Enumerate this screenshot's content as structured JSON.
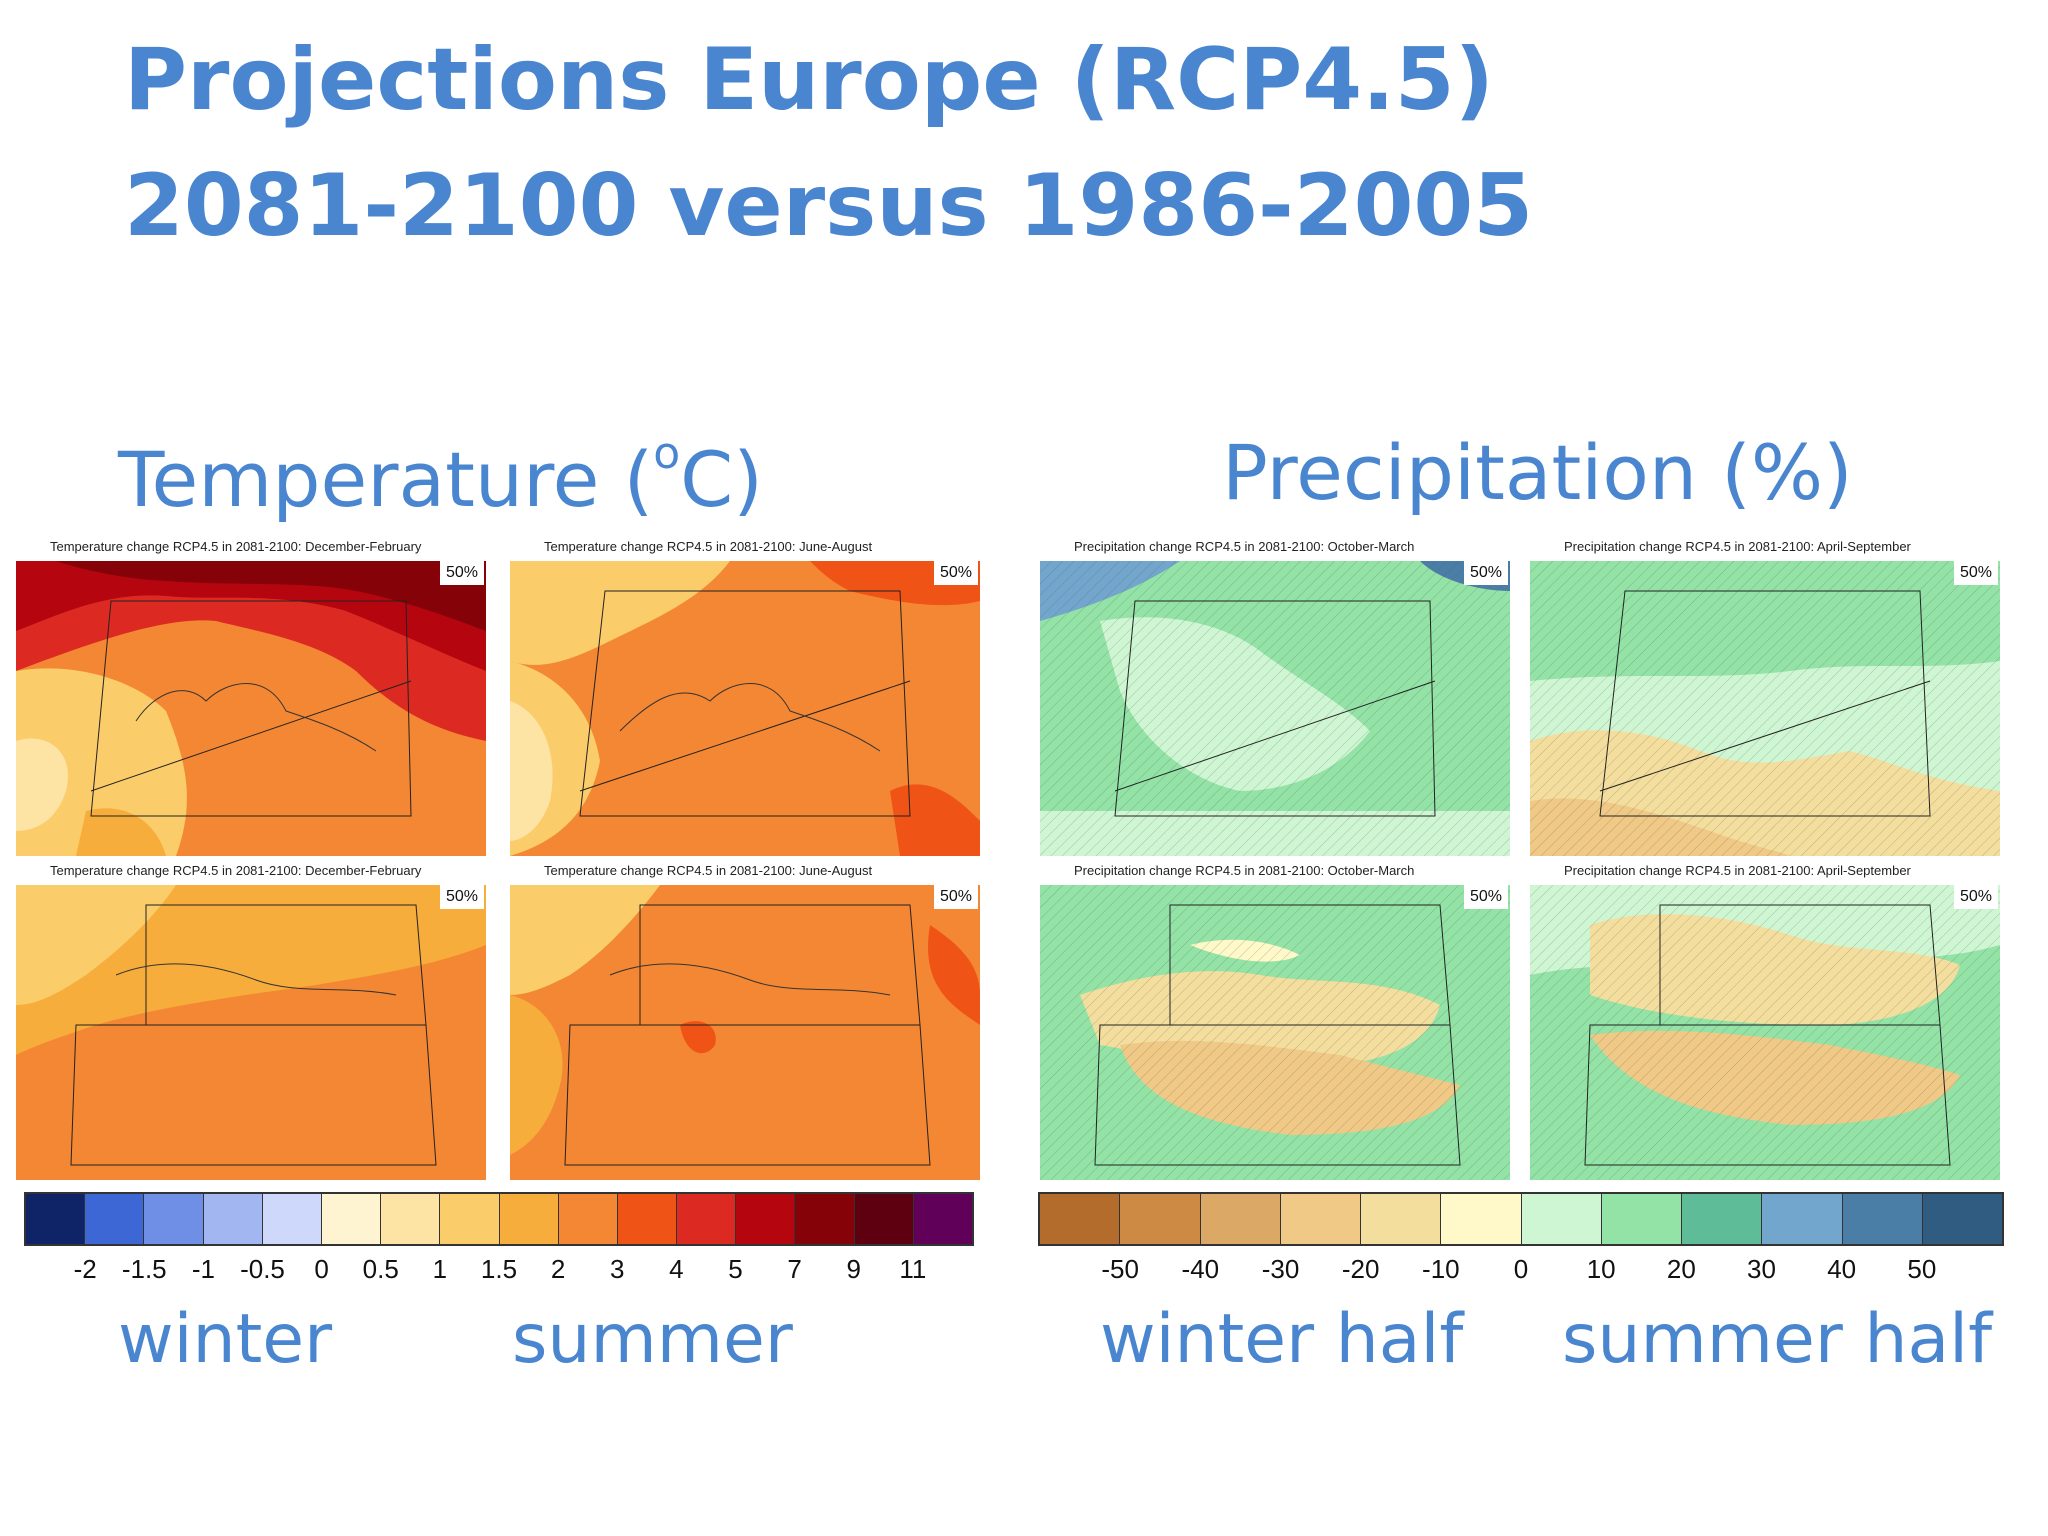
{
  "title": {
    "line1": "Projections Europe (RCP4.5)",
    "line2": "2081-2100 versus 1986-2005"
  },
  "temperature": {
    "heading_main": "Temperature (",
    "heading_sup": "o",
    "heading_end": "C)",
    "panels": [
      {
        "title": "Temperature change RCP4.5 in 2081-2100: December-February",
        "badge": "50%"
      },
      {
        "title": "Temperature change RCP4.5 in 2081-2100: June-August",
        "badge": "50%"
      },
      {
        "title": "Temperature change RCP4.5 in 2081-2100: December-February",
        "badge": "50%"
      },
      {
        "title": "Temperature change RCP4.5 in 2081-2100: June-August",
        "badge": "50%"
      }
    ],
    "colorbar": {
      "colors": [
        "#0f2466",
        "#3e67d6",
        "#6f8fe6",
        "#a2b6f2",
        "#cdd8fb",
        "#fff4d2",
        "#fde3a4",
        "#fbcc6a",
        "#f6ad3b",
        "#f38733",
        "#ef5315",
        "#dc2a22",
        "#b5050f",
        "#850308",
        "#5e0010",
        "#600058"
      ],
      "ticks": [
        "-2",
        "-1.5",
        "-1",
        "-0.5",
        "0",
        "0.5",
        "1",
        "1.5",
        "2",
        "3",
        "4",
        "5",
        "7",
        "9",
        "11"
      ]
    },
    "seasons": [
      "winter",
      "summer"
    ]
  },
  "precipitation": {
    "heading": "Precipitation (%)",
    "panels": [
      {
        "title": "Precipitation change RCP4.5 in 2081-2100: October-March",
        "badge": "50%"
      },
      {
        "title": "Precipitation change RCP4.5 in 2081-2100: April-September",
        "badge": "50%"
      },
      {
        "title": "Precipitation change RCP4.5 in 2081-2100: October-March",
        "badge": "50%"
      },
      {
        "title": "Precipitation change RCP4.5 in 2081-2100: April-September",
        "badge": "50%"
      }
    ],
    "colorbar": {
      "colors": [
        "#b46c2c",
        "#cc8a44",
        "#dca866",
        "#efc985",
        "#f4de9e",
        "#fff8c8",
        "#cff6d2",
        "#93e2a6",
        "#5ebc98",
        "#72a6cc",
        "#4b7ea6",
        "#2f5c80"
      ],
      "ticks": [
        "-50",
        "-40",
        "-30",
        "-20",
        "-10",
        "0",
        "10",
        "20",
        "30",
        "40",
        "50"
      ]
    },
    "seasons": [
      "winter half",
      "summer half"
    ]
  }
}
